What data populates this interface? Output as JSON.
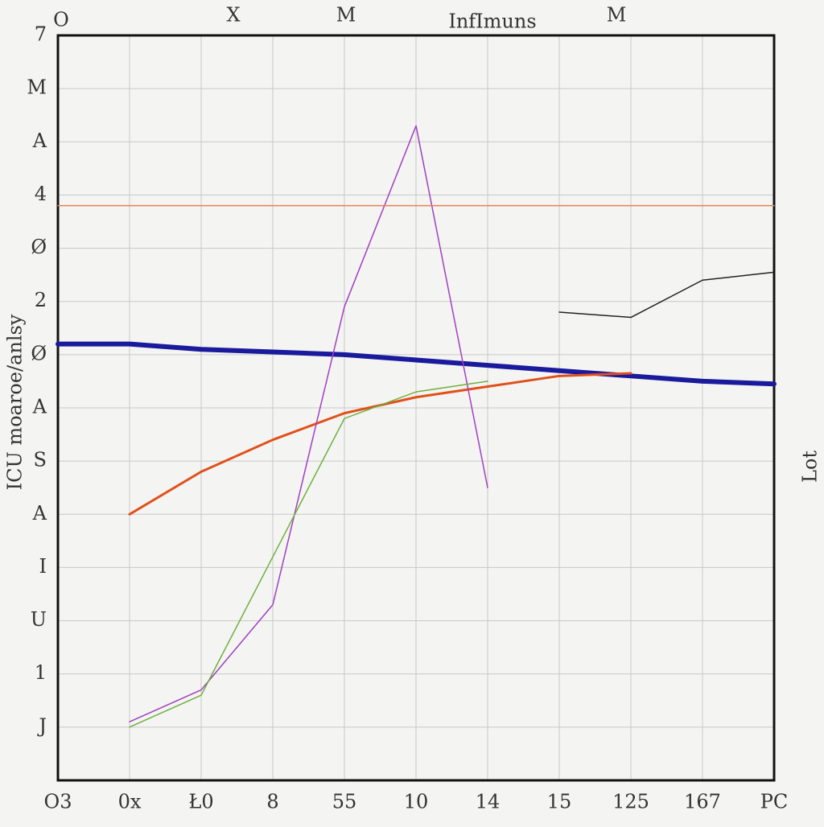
{
  "chart_data": {
    "type": "line",
    "title": "InfImuns",
    "top_labels": [
      "O",
      "X",
      "M",
      "M"
    ],
    "y_label": "ICU moaroe/anlsy",
    "y2_label": "Lot",
    "categories": [
      "O3",
      "0x",
      "Ł0",
      "8",
      "55",
      "10",
      "14",
      "15",
      "125",
      "167",
      "PC"
    ],
    "ylim": [
      0,
      14
    ],
    "yticks": [
      {
        "value": 1,
        "label": "J"
      },
      {
        "value": 2,
        "label": "1"
      },
      {
        "value": 3,
        "label": "U"
      },
      {
        "value": 4,
        "label": "I"
      },
      {
        "value": 5,
        "label": "A"
      },
      {
        "value": 6,
        "label": "S"
      },
      {
        "value": 7,
        "label": "A"
      },
      {
        "value": 8,
        "label": "Ø"
      },
      {
        "value": 9,
        "label": "2"
      },
      {
        "value": 10,
        "label": "Ø"
      },
      {
        "value": 11,
        "label": "4"
      },
      {
        "value": 12,
        "label": "A"
      },
      {
        "value": 13,
        "label": "M"
      },
      {
        "value": 14,
        "label": "7"
      }
    ],
    "grid": true,
    "series": [
      {
        "name": "blue",
        "color": "#1a1a9c",
        "width": 6,
        "values": [
          8.2,
          8.2,
          8.1,
          8.05,
          8.0,
          7.9,
          7.8,
          7.7,
          7.6,
          7.5,
          7.45
        ]
      },
      {
        "name": "orange",
        "color": "#e0501a",
        "width": 3,
        "values": [
          null,
          5.0,
          5.8,
          6.4,
          6.9,
          7.2,
          7.4,
          7.6,
          7.65,
          null,
          null
        ]
      },
      {
        "name": "purple",
        "color": "#a040c0",
        "width": 1.5,
        "values": [
          null,
          1.1,
          1.7,
          3.3,
          8.9,
          12.3,
          5.5,
          null,
          null,
          null,
          null
        ]
      },
      {
        "name": "black",
        "color": "#222222",
        "width": 1.5,
        "values": [
          null,
          null,
          null,
          null,
          null,
          null,
          null,
          8.8,
          8.7,
          9.4,
          9.55
        ]
      },
      {
        "name": "light orange",
        "color": "#e88050",
        "width": 1.5,
        "values": [
          10.8,
          10.8,
          10.8,
          10.8,
          10.8,
          10.8,
          10.8,
          10.8,
          10.8,
          10.8,
          10.8
        ]
      },
      {
        "name": "green",
        "color": "#70b040",
        "width": 1.5,
        "values": [
          null,
          1.0,
          1.6,
          4.2,
          6.8,
          7.3,
          7.5,
          null,
          null,
          null,
          null
        ]
      }
    ]
  }
}
